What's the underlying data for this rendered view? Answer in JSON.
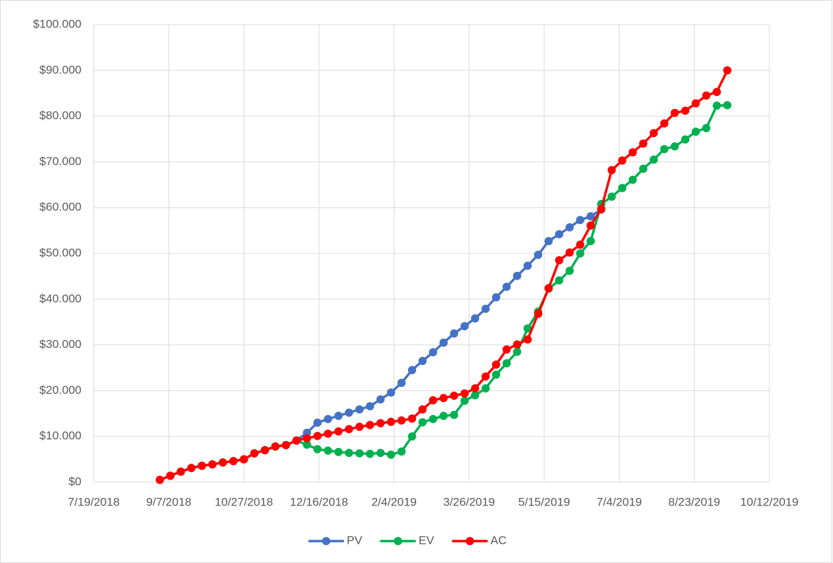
{
  "chart_data": {
    "type": "line",
    "x": [
      "9/1/2018",
      "9/8/2018",
      "9/15/2018",
      "9/22/2018",
      "9/29/2018",
      "10/6/2018",
      "10/13/2018",
      "10/20/2018",
      "10/27/2018",
      "11/3/2018",
      "11/10/2018",
      "11/17/2018",
      "11/24/2018",
      "12/1/2018",
      "12/8/2018",
      "12/15/2018",
      "12/22/2018",
      "12/29/2018",
      "1/5/2019",
      "1/12/2019",
      "1/19/2019",
      "1/26/2019",
      "2/2/2019",
      "2/9/2019",
      "2/16/2019",
      "2/23/2019",
      "3/2/2019",
      "3/9/2019",
      "3/16/2019",
      "3/23/2019",
      "3/30/2019",
      "4/6/2019",
      "4/13/2019",
      "4/20/2019",
      "4/27/2019",
      "5/4/2019",
      "5/11/2019",
      "5/18/2019",
      "5/25/2019",
      "6/1/2019",
      "6/8/2019",
      "6/15/2019",
      "6/22/2019",
      "6/29/2019",
      "7/6/2019",
      "7/13/2019",
      "7/20/2019",
      "7/27/2019",
      "8/3/2019",
      "8/10/2019",
      "8/17/2019",
      "8/24/2019",
      "8/31/2019",
      "9/7/2019",
      "9/14/2019"
    ],
    "series": [
      {
        "name": "PV",
        "color": "#4472c4",
        "values": [
          500,
          1400,
          2300,
          3100,
          3600,
          3900,
          4300,
          4600,
          5000,
          6300,
          7000,
          7800,
          8100,
          9100,
          10800,
          13000,
          13800,
          14500,
          15200,
          15900,
          16600,
          18100,
          19600,
          21700,
          24500,
          26500,
          28400,
          30500,
          32500,
          34100,
          35800,
          37900,
          40400,
          42700,
          45100,
          47300,
          49700,
          52700,
          54200,
          55700,
          57300,
          58100,
          59600,
          null,
          null,
          null,
          null,
          null,
          null,
          null,
          null,
          null,
          null,
          null,
          null
        ]
      },
      {
        "name": "EV",
        "color": "#00b050",
        "values": [
          500,
          1400,
          2300,
          3100,
          3600,
          3900,
          4300,
          4600,
          5000,
          6300,
          7000,
          7800,
          8100,
          9100,
          8200,
          7200,
          6900,
          6600,
          6400,
          6300,
          6200,
          6400,
          6000,
          6700,
          10000,
          13100,
          13800,
          14500,
          14700,
          17800,
          19000,
          20500,
          23500,
          26000,
          28500,
          33600,
          37300,
          42300,
          44100,
          46200,
          50000,
          52700,
          60800,
          62400,
          64300,
          66100,
          68500,
          70500,
          72800,
          73400,
          74900,
          76600,
          77400,
          82300,
          82400
        ]
      },
      {
        "name": "AC",
        "color": "#ff0000",
        "values": [
          500,
          1400,
          2300,
          3100,
          3600,
          3900,
          4300,
          4600,
          5000,
          6300,
          7000,
          7800,
          8100,
          9100,
          9600,
          10100,
          10600,
          11100,
          11600,
          12100,
          12500,
          12900,
          13200,
          13500,
          13900,
          15900,
          17900,
          18400,
          18900,
          19400,
          20500,
          23100,
          25700,
          29000,
          30100,
          31200,
          36800,
          42400,
          48500,
          50200,
          51900,
          56100,
          59700,
          68200,
          70300,
          72100,
          74000,
          76300,
          78400,
          80700,
          81200,
          82800,
          84500,
          85300,
          90000
        ]
      }
    ],
    "xlim": [
      "7/19/2018",
      "10/12/2019"
    ],
    "xticks": [
      "7/19/2018",
      "9/7/2018",
      "10/27/2018",
      "12/16/2018",
      "2/4/2019",
      "3/26/2019",
      "5/15/2019",
      "7/4/2019",
      "8/23/2019",
      "10/12/2019"
    ],
    "ylim": [
      0,
      100000
    ],
    "yticks": [
      {
        "value": 0,
        "label": "$0"
      },
      {
        "value": 10000,
        "label": "$10.000"
      },
      {
        "value": 20000,
        "label": "$20.000"
      },
      {
        "value": 30000,
        "label": "$30.000"
      },
      {
        "value": 40000,
        "label": "$40.000"
      },
      {
        "value": 50000,
        "label": "$50.000"
      },
      {
        "value": 60000,
        "label": "$60.000"
      },
      {
        "value": 70000,
        "label": "$70.000"
      },
      {
        "value": 80000,
        "label": "$80.000"
      },
      {
        "value": 90000,
        "label": "$90.000"
      },
      {
        "value": 100000,
        "label": "$100.000"
      }
    ],
    "grid": true,
    "legend": "bottom"
  }
}
